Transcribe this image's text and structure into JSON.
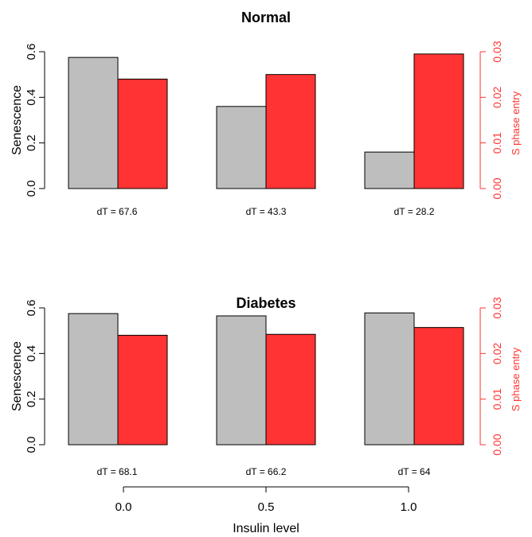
{
  "chart_data": {
    "type": "bar",
    "xlabel": "Insulin level",
    "x_ticks": [
      "0.0",
      "0.5",
      "1.0"
    ],
    "colors": {
      "senescence": "#bebebe",
      "s_phase": "#ff3333"
    },
    "panels": [
      {
        "title": "Normal",
        "ylabel_left": "Senescence",
        "ylabel_right": "S phase entry",
        "ylim_left": [
          0,
          0.6
        ],
        "ylim_right": [
          0,
          0.03
        ],
        "yticks_left": [
          "0.0",
          "0.2",
          "0.4",
          "0.6"
        ],
        "yticks_right": [
          "0.00",
          "0.01",
          "0.02",
          "0.03"
        ],
        "categories": [
          "0.0",
          "0.5",
          "1.0"
        ],
        "series": [
          {
            "axis": "left",
            "values": [
              0.575,
              0.36,
              0.16
            ]
          },
          {
            "axis": "right",
            "values": [
              0.024,
              0.025,
              0.0295
            ]
          }
        ],
        "annotations": [
          "dT = 67.6",
          "dT = 43.3",
          "dT = 28.2"
        ]
      },
      {
        "title": "Diabetes",
        "ylabel_left": "Senescence",
        "ylabel_right": "S phase entry",
        "ylim_left": [
          0,
          0.6
        ],
        "ylim_right": [
          0,
          0.03
        ],
        "yticks_left": [
          "0.0",
          "0.2",
          "0.4",
          "0.6"
        ],
        "yticks_right": [
          "0.00",
          "0.01",
          "0.02",
          "0.03"
        ],
        "categories": [
          "0.0",
          "0.5",
          "1.0"
        ],
        "series": [
          {
            "axis": "left",
            "values": [
              0.575,
              0.565,
              0.578
            ]
          },
          {
            "axis": "right",
            "values": [
              0.024,
              0.0242,
              0.0257
            ]
          }
        ],
        "annotations": [
          "dT = 68.1",
          "dT = 66.2",
          "dT = 64"
        ]
      }
    ]
  }
}
